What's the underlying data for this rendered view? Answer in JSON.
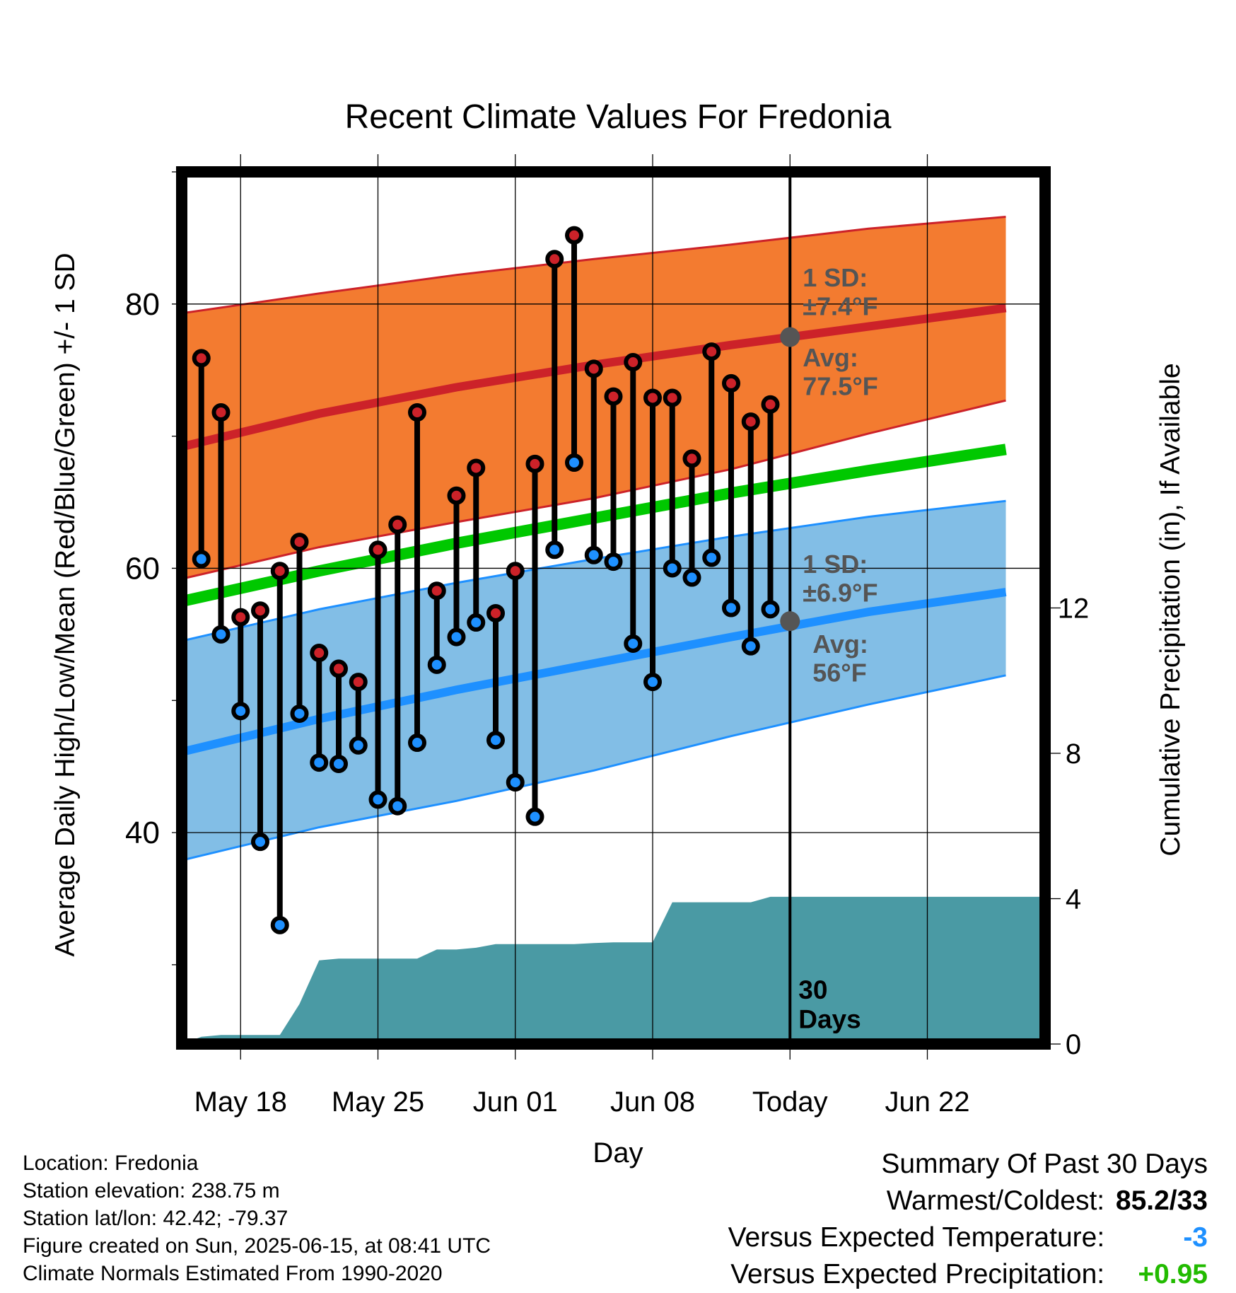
{
  "chart_data": {
    "type": "line",
    "title": "Recent Climate Values For Fredonia",
    "xlabel": "Day",
    "ylabel": "Average Daily High/Low/Mean (Red/Blue/Green) +/- 1 SD",
    "y2label": "Cumulative Precipitation (in), If Available",
    "ylim": [
      24,
      90
    ],
    "y2lim": [
      0,
      24
    ],
    "yticks": [
      40,
      60,
      80
    ],
    "y2ticks": [
      0,
      4,
      8,
      12
    ],
    "xlim": [
      "2025-05-15",
      "2025-06-28"
    ],
    "xticks": [
      {
        "date": "2025-05-18",
        "label": "May 18"
      },
      {
        "date": "2025-05-25",
        "label": "May 25"
      },
      {
        "date": "2025-06-01",
        "label": "Jun 01"
      },
      {
        "date": "2025-06-08",
        "label": "Jun 08"
      },
      {
        "date": "2025-06-15",
        "label": "Today"
      },
      {
        "date": "2025-06-22",
        "label": "Jun 22"
      }
    ],
    "today": "2025-06-15",
    "grid": true,
    "days_label": [
      "30",
      "Days"
    ],
    "observed": {
      "dates": [
        "2025-05-16",
        "2025-05-17",
        "2025-05-18",
        "2025-05-19",
        "2025-05-20",
        "2025-05-21",
        "2025-05-22",
        "2025-05-23",
        "2025-05-24",
        "2025-05-25",
        "2025-05-26",
        "2025-05-27",
        "2025-05-28",
        "2025-05-29",
        "2025-05-30",
        "2025-05-31",
        "2025-06-01",
        "2025-06-02",
        "2025-06-03",
        "2025-06-04",
        "2025-06-05",
        "2025-06-06",
        "2025-06-07",
        "2025-06-08",
        "2025-06-09",
        "2025-06-10",
        "2025-06-11",
        "2025-06-12",
        "2025-06-13",
        "2025-06-14"
      ],
      "high": [
        75.9,
        71.8,
        56.3,
        56.8,
        59.8,
        62.0,
        53.6,
        52.4,
        51.4,
        61.4,
        63.3,
        71.8,
        58.3,
        65.5,
        67.6,
        56.6,
        59.8,
        67.9,
        83.4,
        85.2,
        75.1,
        73.0,
        75.6,
        72.9,
        72.9,
        68.3,
        76.4,
        74.0,
        71.1,
        72.4
      ],
      "low": [
        60.7,
        55.0,
        49.2,
        39.3,
        33.0,
        49.0,
        45.3,
        45.2,
        46.6,
        42.5,
        42.0,
        46.8,
        52.7,
        54.8,
        55.9,
        47.0,
        43.8,
        41.2,
        61.4,
        68.0,
        61.0,
        60.5,
        54.3,
        51.4,
        60.0,
        59.3,
        60.8,
        57.0,
        54.1,
        56.9
      ]
    },
    "normals": {
      "dates": [
        "2025-05-15",
        "2025-05-22",
        "2025-05-29",
        "2025-06-05",
        "2025-06-12",
        "2025-06-19",
        "2025-06-26"
      ],
      "high_mean": [
        69.2,
        71.7,
        73.7,
        75.4,
        76.9,
        78.3,
        79.7
      ],
      "high_upper": [
        79.3,
        80.8,
        82.2,
        83.4,
        84.5,
        85.7,
        86.6
      ],
      "high_lower": [
        59.2,
        61.6,
        63.5,
        65.3,
        67.5,
        70.2,
        72.7
      ],
      "mean": [
        57.5,
        59.8,
        61.9,
        63.8,
        65.7,
        67.4,
        69.0
      ],
      "low_mean": [
        46.1,
        48.6,
        50.8,
        52.8,
        54.8,
        56.7,
        58.2
      ],
      "low_upper": [
        54.5,
        56.9,
        58.9,
        60.7,
        62.4,
        63.9,
        65.1
      ],
      "low_lower": [
        37.9,
        40.4,
        42.4,
        44.7,
        47.3,
        49.7,
        51.9
      ]
    },
    "precip_cumulative": {
      "dates": [
        "2025-05-15",
        "2025-05-16",
        "2025-05-17",
        "2025-05-18",
        "2025-05-19",
        "2025-05-20",
        "2025-05-21",
        "2025-05-22",
        "2025-05-23",
        "2025-05-24",
        "2025-05-25",
        "2025-05-26",
        "2025-05-27",
        "2025-05-28",
        "2025-05-29",
        "2025-05-30",
        "2025-05-31",
        "2025-06-01",
        "2025-06-02",
        "2025-06-03",
        "2025-06-04",
        "2025-06-05",
        "2025-06-06",
        "2025-06-07",
        "2025-06-08",
        "2025-06-09",
        "2025-06-10",
        "2025-06-11",
        "2025-06-12",
        "2025-06-13",
        "2025-06-14",
        "2025-06-15",
        "2025-06-28"
      ],
      "values": [
        0.0,
        0.2,
        0.25,
        0.25,
        0.25,
        0.25,
        1.1,
        2.3,
        2.35,
        2.35,
        2.35,
        2.35,
        2.35,
        2.6,
        2.6,
        2.65,
        2.75,
        2.75,
        2.75,
        2.75,
        2.75,
        2.78,
        2.8,
        2.8,
        2.8,
        3.9,
        3.9,
        3.9,
        3.9,
        3.9,
        4.05,
        4.05,
        4.05
      ]
    },
    "annotations": {
      "high_sd": [
        "1 SD:",
        "±7.4°F"
      ],
      "high_avg": [
        "Avg:",
        "77.5°F"
      ],
      "high_avg_value": 77.5,
      "low_sd": [
        "1 SD:",
        "±6.9°F"
      ],
      "low_avg": [
        "Avg:",
        "56°F"
      ],
      "low_avg_value": 56
    },
    "colors": {
      "high_band": "#f37b30",
      "high_line": "#cc2229",
      "mean_line": "#00c800",
      "low_band": "#82bee6",
      "low_line": "#1e90ff",
      "precip": "#4a9aa4",
      "high_dot": "#cc2229",
      "low_dot": "#1e90ff",
      "annotation": "#555555"
    }
  },
  "info": {
    "location": "Location: Fredonia",
    "elevation": "Station elevation: 238.75 m",
    "latlon": "Station lat/lon: 42.42; -79.37",
    "created": "Figure created on Sun, 2025-06-15, at 08:41 UTC",
    "normals": "Climate Normals Estimated From 1990-2020"
  },
  "summary": {
    "title": "Summary Of Past 30 Days",
    "warmest_label": "Warmest/Coldest:",
    "warmest_value": "85.2/33",
    "temp_label": "Versus Expected Temperature:",
    "temp_value": "-3",
    "temp_color": "#1e90ff",
    "precip_label": "Versus Expected Precipitation:",
    "precip_value": "+0.95",
    "precip_color": "#22bb00"
  }
}
